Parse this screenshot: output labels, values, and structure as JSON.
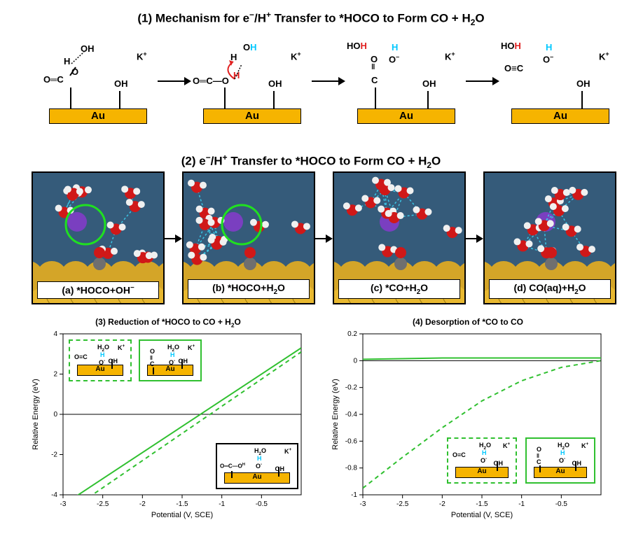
{
  "panel1": {
    "title_html": "(1) Mechanism for e<sup>&minus;</sup>/H<sup>+</sup> Transfer to *HOCO to Form CO + H<sub>2</sub>O",
    "au_label": "Au",
    "k_plus_html": "K<sup>+</sup>"
  },
  "panel2": {
    "title_html": "(2) e<sup>&minus;</sup>/H<sup>+</sup> Transfer to *HOCO to Form CO + H<sub>2</sub>O",
    "snaps": [
      {
        "label_html": "(a) *HOCO+OH<sup>&minus;</sup>",
        "circle": true
      },
      {
        "label_html": "(b) *HOCO+H<sub>2</sub>O",
        "circle": true
      },
      {
        "label_html": "(c) *CO+H<sub>2</sub>O",
        "circle": false
      },
      {
        "label_html": "(d) CO(aq)+H<sub>2</sub>O",
        "circle": false
      }
    ],
    "colors": {
      "bg": "#355b7a",
      "gold": "#e8b830",
      "O": "#d01818",
      "H": "#f0f0f0",
      "C": "#6f6f6f",
      "K": "#7a3fc0",
      "bond": "#3bc5e5"
    }
  },
  "chart_common": {
    "xlabel": "Potential (V, SCE)",
    "ylabel": "Relative Energy (eV)",
    "xlim": [
      -3,
      0
    ],
    "xticks": [
      -3,
      -2.5,
      -2,
      -1.5,
      -1,
      -0.5
    ],
    "line_color": "#30c030",
    "zero_color": "#000000",
    "grid": "#d8d8d8"
  },
  "chart3": {
    "title_html": "(3) Reduction of *HOCO to CO + H<sub>2</sub>O",
    "ylim": [
      -4,
      4
    ],
    "yticks": [
      -4,
      -2,
      0,
      2,
      4
    ],
    "solid": [
      [
        -3,
        -4.5
      ],
      [
        0,
        3.3
      ]
    ],
    "dashed": [
      [
        -3,
        -5.0
      ],
      [
        0,
        3.1
      ]
    ]
  },
  "chart4": {
    "title_html": "(4) Desorption of *CO to CO",
    "ylim": [
      -1.0,
      0.2
    ],
    "yticks": [
      -1.0,
      -0.8,
      -0.6,
      -0.4,
      -0.2,
      0.0,
      0.2
    ],
    "solid": [
      [
        -3,
        0.01
      ],
      [
        -2.5,
        0.015
      ],
      [
        -2,
        0.02
      ],
      [
        -1.5,
        0.02
      ],
      [
        -1,
        0.02
      ],
      [
        -0.5,
        0.02
      ],
      [
        0,
        0.02
      ]
    ],
    "dashed": [
      [
        -3,
        -0.95
      ],
      [
        -2.5,
        -0.72
      ],
      [
        -2,
        -0.5
      ],
      [
        -1.5,
        -0.3
      ],
      [
        -1,
        -0.15
      ],
      [
        -0.5,
        -0.05
      ],
      [
        0,
        0.0
      ]
    ]
  },
  "inset_labels": {
    "H2O_html": "H<sub>2</sub>O",
    "K_html": "K<sup>+</sup>",
    "OH": "OH",
    "OC": "O≡C",
    "Au": "Au",
    "H_cyan": "H",
    "O_html": "O<sup>&minus;</sup>",
    "C_double": "C",
    "O_double": "O"
  }
}
